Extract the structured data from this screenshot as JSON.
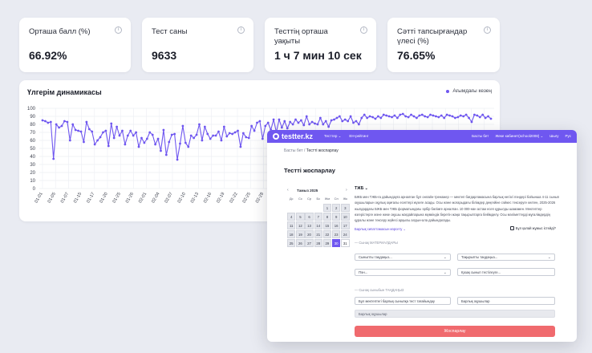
{
  "stats": [
    {
      "label": "Орташа балл (%)",
      "value": "66.92%"
    },
    {
      "label": "Тест саны",
      "value": "9633"
    },
    {
      "label": "Тесттің орташа уақыты",
      "value": "1 ч 7 мин 10 сек"
    },
    {
      "label": "Сәтті тапсырғандар үлесі (%)",
      "value": "76.65%"
    }
  ],
  "chart": {
    "title": "Үлгерім динамикасы",
    "legend": "Ағымдағы кезең"
  },
  "chart_data": {
    "type": "line",
    "title": "Үлгерім динамикасы",
    "xlabel": "",
    "ylabel": "",
    "ylim": [
      0,
      100
    ],
    "yticks": [
      0,
      10,
      20,
      30,
      40,
      50,
      60,
      70,
      80,
      90,
      100
    ],
    "xticks": [
      "01-01",
      "01-05",
      "01-07",
      "01-15",
      "01-17",
      "01-20",
      "01-25",
      "01-26",
      "02-01",
      "02-04",
      "02-07",
      "02-10",
      "02-13",
      "02-16",
      "02-19",
      "02-22",
      "02-25",
      "02-28"
    ],
    "grid": true,
    "legend_position": "top-right",
    "series": [
      {
        "name": "Ағымдағы кезең",
        "color": "#6f57f0",
        "values": [
          85,
          84,
          82,
          83,
          37,
          80,
          76,
          78,
          84,
          83,
          60,
          80,
          73,
          72,
          71,
          58,
          83,
          74,
          71,
          55,
          60,
          64,
          70,
          72,
          53,
          81,
          63,
          77,
          66,
          72,
          55,
          66,
          72,
          66,
          70,
          52,
          63,
          57,
          62,
          70,
          67,
          55,
          62,
          47,
          73,
          42,
          58,
          67,
          68,
          36,
          56,
          78,
          57,
          52,
          66,
          63,
          67,
          80,
          60,
          77,
          68,
          62,
          66,
          66,
          71,
          60,
          77,
          65,
          69,
          68,
          70,
          72,
          52,
          69,
          64,
          63,
          78,
          72,
          82,
          84,
          62,
          78,
          82,
          73,
          86,
          70,
          86,
          76,
          84,
          75,
          83,
          80,
          86,
          82,
          85,
          79,
          90,
          80,
          83,
          81,
          80,
          88,
          80,
          84,
          77,
          85,
          86,
          88,
          90,
          84,
          86,
          84,
          90,
          82,
          84,
          80,
          88,
          92,
          88,
          90,
          89,
          87,
          90,
          88,
          92,
          91,
          90,
          89,
          91,
          88,
          92,
          93,
          90,
          89,
          92,
          90,
          88,
          91,
          92,
          90,
          89,
          92,
          91,
          90,
          89,
          91,
          88,
          92,
          91,
          90,
          88,
          89,
          91,
          90,
          92,
          88,
          83,
          92,
          91,
          89,
          92,
          88,
          90,
          87
        ]
      }
    ]
  },
  "app": {
    "brand": "testter.kz",
    "nav": [
      "Тесттер ⌄",
      "ЕН-рейтинг"
    ],
    "nav_right": [
      "Басты бет",
      "Жеке кабинет(school2008) ⌄",
      "Шығу",
      "Рус"
    ],
    "breadcrumb_home": "Басты бет",
    "breadcrumb_current": "Тестті жоспарлау",
    "page_title": "Тестті жоспарлау",
    "calendar": {
      "month": "Тамыз 2025",
      "prev": "‹",
      "next": "›",
      "days": [
        "Дс",
        "Сс",
        "Ср",
        "Бс",
        "Жм",
        "Сн",
        "Жк"
      ],
      "cells": [
        {
          "t": "",
          "k": "e"
        },
        {
          "t": "",
          "k": "e"
        },
        {
          "t": "",
          "k": "e"
        },
        {
          "t": "",
          "k": "e"
        },
        {
          "t": "1",
          "k": "past"
        },
        {
          "t": "2",
          "k": "past"
        },
        {
          "t": "3",
          "k": "past"
        },
        {
          "t": "4",
          "k": "past"
        },
        {
          "t": "5",
          "k": "past"
        },
        {
          "t": "6",
          "k": "past"
        },
        {
          "t": "7",
          "k": "past"
        },
        {
          "t": "8",
          "k": "past"
        },
        {
          "t": "9",
          "k": "past"
        },
        {
          "t": "10",
          "k": "past"
        },
        {
          "t": "11",
          "k": "past"
        },
        {
          "t": "12",
          "k": "past"
        },
        {
          "t": "13",
          "k": "past"
        },
        {
          "t": "14",
          "k": "past"
        },
        {
          "t": "15",
          "k": "past"
        },
        {
          "t": "16",
          "k": "past"
        },
        {
          "t": "17",
          "k": "past"
        },
        {
          "t": "18",
          "k": "past"
        },
        {
          "t": "19",
          "k": "past"
        },
        {
          "t": "20",
          "k": "past"
        },
        {
          "t": "21",
          "k": "past"
        },
        {
          "t": "22",
          "k": "past"
        },
        {
          "t": "23",
          "k": "past"
        },
        {
          "t": "24",
          "k": "past"
        },
        {
          "t": "25",
          "k": "past"
        },
        {
          "t": "26",
          "k": "past"
        },
        {
          "t": "27",
          "k": "past"
        },
        {
          "t": "28",
          "k": "past"
        },
        {
          "t": "29",
          "k": "past"
        },
        {
          "t": "30",
          "k": "sel"
        },
        {
          "t": "31",
          "k": "c"
        }
      ]
    },
    "exam_title": "ТЖБ ⌄",
    "exam_desc": "БЖБ мен ТЖБ-ға дайындауға арналған бұл онлайн-тренажер — мектеп бағдарламасына барлық негізгі пәндері бойынша 4-11 сынып оқушыларын оқулық оқиғалы есептері жүзеге асады. Осы және жоғарыдағы білімдер деңгейіне сәйкес тексеруге келген, 2025-2026 жылдардағы БЖБ мен ТЖБ форматындағы әрбір бөлімге арналған. 10 000-нан астам есеп құрылды шамамен. Мектептер өзгерістерге және жеке оқушы жағдайларына мүмкіндік беретін жаңа тақырыптарға бейімделу. Осы мәліметтерді мұғалімдердің құралы және тексеру жүйесі арқылы алдын-ала дайындалады.",
    "link": "Барлық сипаттамасын көрсету ⌄",
    "video": "Бұл қалай жұмыс істейді?",
    "section1": "— Сынақ МАТЕРИАЛДАРЫ",
    "select1": "Сыныпты таңдаңыз...",
    "select2": "Тақырыпты таңдаңыз...",
    "select3": "Пән...",
    "input1": "Қазақ сынып тестілеуге...",
    "section2": "— Сынақ сыныбын ТАҢДАҢЫЗ",
    "input2": "Бұл мектептегі барлық сыныпқа тест тағайындау",
    "input3": "Барлық оқушылар",
    "input4": "Барлық оқушылар",
    "submit": "Жоспарлау"
  }
}
